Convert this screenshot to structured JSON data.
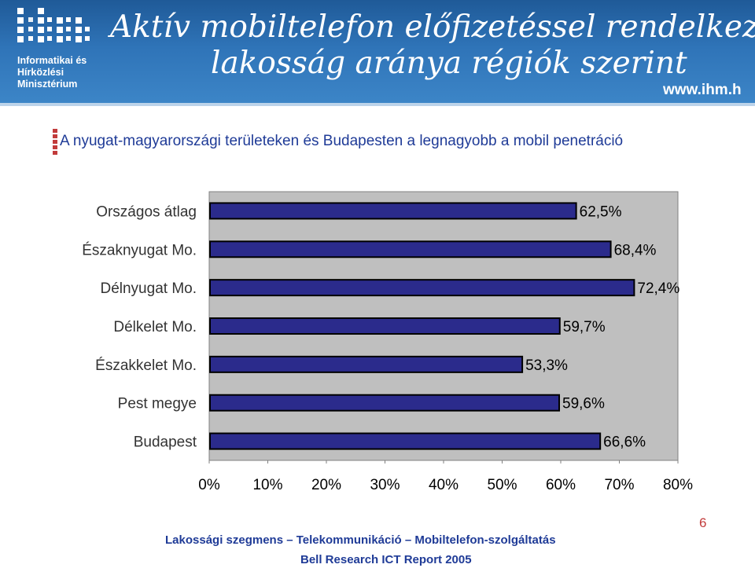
{
  "header": {
    "logo_lines": [
      "Informatikai és",
      "Hírközlési",
      "Minisztérium"
    ],
    "title_line1": "Aktív mobiltelefon előfizetéssel rendelkező",
    "title_line2": "lakosság aránya régiók szerint",
    "url": "www.ihm.h"
  },
  "subtitle": "A nyugat-magyarországi területeken és Budapesten a legnagyobb a mobil penetráció",
  "chart_data": {
    "type": "bar",
    "orientation": "horizontal",
    "categories": [
      "Országos átlag",
      "Északnyugat Mo.",
      "Délnyugat Mo.",
      "Délkelet Mo.",
      "Északkelet Mo.",
      "Pest megye",
      "Budapest"
    ],
    "values": [
      62.5,
      68.4,
      72.4,
      59.7,
      53.3,
      59.6,
      66.6
    ],
    "value_labels": [
      "62,5%",
      "68,4%",
      "72,4%",
      "59,7%",
      "53,3%",
      "59,6%",
      "66,6%"
    ],
    "xlim": [
      0,
      80
    ],
    "x_ticks": [
      "0%",
      "10%",
      "20%",
      "30%",
      "40%",
      "50%",
      "60%",
      "70%",
      "80%"
    ],
    "colors": {
      "bar_fill": "#2b2b8c",
      "bar_stroke": "#000000",
      "plot_bg": "#bfbfbf",
      "frame": "#808080"
    }
  },
  "footer": {
    "line1": "Lakossági szegmens – Telekommunikáció – Mobiltelefon-szolgáltatás",
    "line2": "Bell Research ICT Report 2005",
    "page_number": "6"
  },
  "colors": {
    "header_blue": "#2f74b8",
    "subtitle_blue": "#1f3b97",
    "accent_red": "#c23b3b"
  }
}
